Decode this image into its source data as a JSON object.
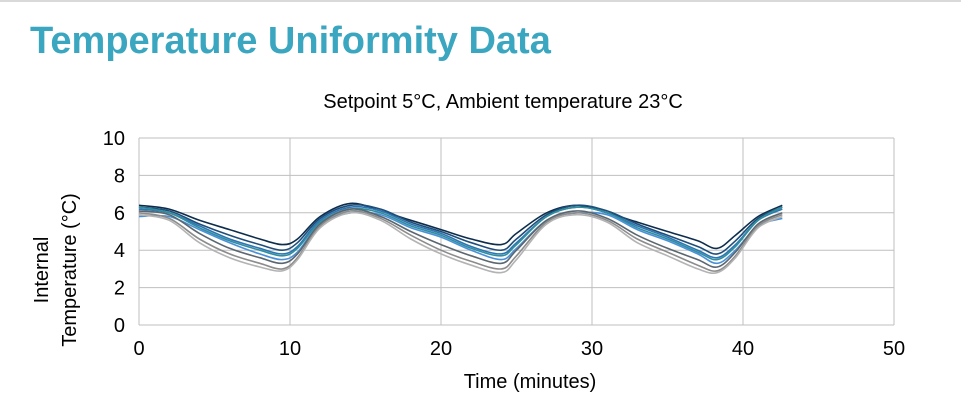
{
  "page": {
    "title": "Temperature Uniformity Data"
  },
  "colors": {
    "title": "#3aa6c0",
    "grid": "#bfbfbf"
  },
  "chart_data": {
    "type": "line",
    "title": "Setpoint 5°C, Ambient temperature 23°C",
    "xlabel": "Time (minutes)",
    "ylabel_lines": [
      "Internal",
      "Temperature (°C)"
    ],
    "xlim": [
      0,
      50
    ],
    "ylim": [
      0,
      10
    ],
    "x_ticks": [
      0,
      10,
      20,
      30,
      40,
      50
    ],
    "y_ticks": [
      0,
      2,
      4,
      6,
      8,
      10
    ],
    "grid": true,
    "legend": "none",
    "x": [
      0,
      2,
      4,
      6,
      8,
      9.5,
      10.5,
      12,
      14,
      16,
      18,
      20,
      22,
      24,
      25,
      27,
      29,
      31,
      33,
      35,
      37,
      38.3,
      39.5,
      41,
      42.6
    ],
    "series": [
      {
        "color": "#0d2d4d",
        "values": [
          6.4,
          6.2,
          5.6,
          5.1,
          4.6,
          4.3,
          4.6,
          5.8,
          6.5,
          6.1,
          5.6,
          5.1,
          4.6,
          4.3,
          4.9,
          6.0,
          6.4,
          6.0,
          5.5,
          5.0,
          4.5,
          4.1,
          4.8,
          5.8,
          6.4
        ]
      },
      {
        "color": "#1f4e79",
        "values": [
          6.3,
          6.1,
          5.4,
          4.8,
          4.3,
          4.0,
          4.4,
          5.7,
          6.4,
          6.2,
          5.5,
          5.0,
          4.4,
          4.0,
          4.6,
          5.9,
          6.4,
          6.1,
          5.4,
          4.8,
          4.2,
          3.8,
          4.5,
          5.7,
          6.3
        ]
      },
      {
        "color": "#2e75b6",
        "values": [
          6.2,
          6.0,
          5.3,
          4.6,
          4.1,
          3.8,
          4.2,
          5.6,
          6.3,
          6.1,
          5.4,
          4.9,
          4.2,
          3.8,
          4.4,
          5.8,
          6.3,
          6.0,
          5.3,
          4.7,
          4.0,
          3.6,
          4.3,
          5.6,
          6.2
        ]
      },
      {
        "color": "#2f8f9d",
        "values": [
          6.3,
          6.0,
          5.2,
          4.5,
          4.0,
          3.7,
          4.1,
          5.5,
          6.2,
          6.0,
          5.3,
          4.8,
          4.1,
          3.7,
          4.3,
          5.8,
          6.3,
          6.0,
          5.2,
          4.6,
          3.9,
          3.5,
          4.2,
          5.6,
          6.3
        ]
      },
      {
        "color": "#4a90d9",
        "values": [
          5.8,
          5.8,
          5.1,
          4.4,
          3.8,
          3.5,
          3.9,
          5.4,
          6.0,
          5.9,
          5.2,
          4.7,
          4.0,
          3.5,
          4.1,
          5.6,
          6.0,
          5.9,
          5.1,
          4.5,
          3.8,
          3.3,
          4.0,
          5.3,
          5.7
        ]
      },
      {
        "color": "#5b6770",
        "values": [
          6.1,
          5.9,
          4.9,
          4.1,
          3.6,
          3.3,
          3.8,
          5.4,
          6.2,
          5.8,
          5.0,
          4.3,
          3.7,
          3.3,
          4.0,
          5.6,
          6.1,
          5.7,
          4.8,
          4.1,
          3.5,
          3.1,
          3.9,
          5.4,
          6.0
        ]
      },
      {
        "color": "#8c8c8c",
        "values": [
          6.0,
          5.7,
          4.6,
          3.8,
          3.3,
          3.0,
          3.6,
          5.3,
          6.1,
          5.7,
          4.8,
          4.0,
          3.4,
          3.0,
          3.7,
          5.5,
          6.0,
          5.6,
          4.6,
          3.9,
          3.2,
          2.9,
          3.7,
          5.3,
          5.9
        ]
      },
      {
        "color": "#b3b3b3",
        "values": [
          5.9,
          5.6,
          4.4,
          3.6,
          3.1,
          2.9,
          3.5,
          5.2,
          6.0,
          5.6,
          4.6,
          3.8,
          3.2,
          2.8,
          3.5,
          5.4,
          5.9,
          5.5,
          4.4,
          3.7,
          3.0,
          2.8,
          3.6,
          5.2,
          5.8
        ]
      }
    ]
  }
}
